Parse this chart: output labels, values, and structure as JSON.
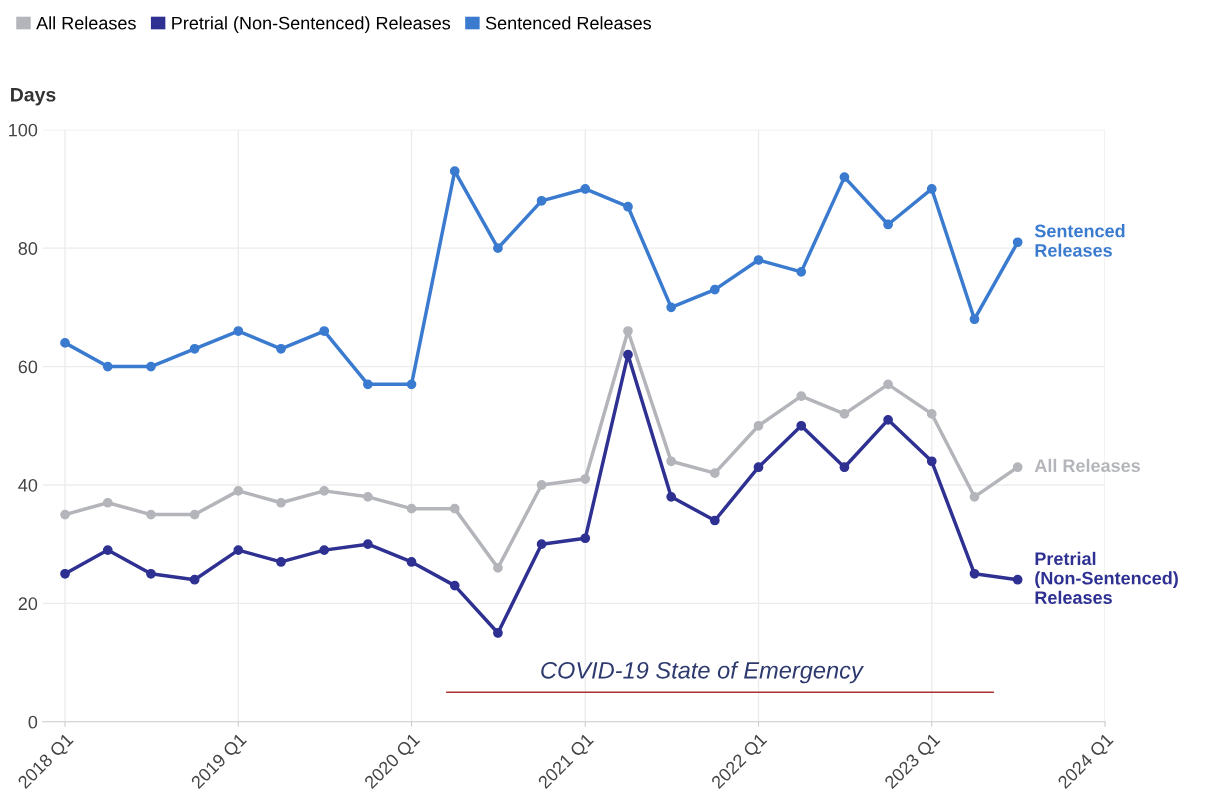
{
  "chart_data": {
    "type": "line",
    "ylabel": "Days",
    "x": [
      "2018-01-01",
      "2018-04-01",
      "2018-07-01",
      "2018-10-01",
      "2019-01-01",
      "2019-04-01",
      "2019-07-01",
      "2019-10-01",
      "2020-01-01",
      "2020-04-01",
      "2020-07-01",
      "2020-10-01",
      "2021-01-01",
      "2021-04-01",
      "2021-07-01",
      "2021-10-01",
      "2022-01-01",
      "2022-04-01",
      "2022-07-01",
      "2022-10-01",
      "2023-01-01",
      "2023-04-01",
      "2023-07-01"
    ],
    "series": [
      {
        "name": "All Releases",
        "color": "#b3b5ba",
        "values": [
          35,
          37,
          35,
          35,
          39,
          37,
          39,
          38,
          36,
          36,
          26,
          40,
          41,
          66,
          44,
          42,
          50,
          55,
          52,
          57,
          52,
          38,
          43
        ]
      },
      {
        "name": "Pretrial (Non-Sentenced) Releases",
        "color": "#2e3192",
        "values": [
          25,
          29,
          25,
          24,
          29,
          27,
          29,
          30,
          27,
          23,
          15,
          30,
          31,
          62,
          38,
          34,
          43,
          50,
          43,
          51,
          44,
          25,
          24
        ]
      },
      {
        "name": "Sentenced Releases",
        "color": "#3a7bd0",
        "values": [
          64,
          60,
          60,
          63,
          66,
          63,
          66,
          57,
          57,
          93,
          80,
          88,
          90,
          87,
          70,
          73,
          78,
          76,
          92,
          84,
          90,
          68,
          81
        ]
      },
      {
        "type": "line",
        "color": "#a83232",
        "x": [
          "2020-03-15",
          "2023-05-11"
        ],
        "values": [
          5,
          5
        ],
        "marker": "none"
      }
    ],
    "annotations": [
      "COVID-19 State of Emergency",
      {
        "text": "All Releases",
        "x": "2023-07-01",
        "y": 43
      },
      {
        "text": "Pretrial\n(Non-Sentenced)\nReleases",
        "x": "2023-07-01",
        "y": 24
      },
      {
        "text": "Sentenced\nReleases",
        "x": "2023-07-01",
        "y": 81
      }
    ],
    "xlim": [
      "2017-11-15",
      "2024-01-01"
    ],
    "xticks": [
      {
        "value": "2018-01-01",
        "label": "2018 Q1"
      },
      {
        "value": "2019-01-01",
        "label": "2019 Q1"
      },
      {
        "value": "2020-01-01",
        "label": "2020 Q1"
      },
      {
        "value": "2021-01-01",
        "label": "2021 Q1"
      },
      {
        "value": "2022-01-01",
        "label": "2022 Q1"
      },
      {
        "value": "2023-01-01",
        "label": "2023 Q1"
      },
      {
        "value": "2024-01-01",
        "label": "2024 Q1"
      }
    ],
    "ylim": [
      0,
      100
    ],
    "yticks": [
      0,
      20,
      40,
      60,
      80,
      100
    ],
    "grid": true,
    "legend": "top left",
    "marker": "circle",
    "line_style": "solid"
  }
}
